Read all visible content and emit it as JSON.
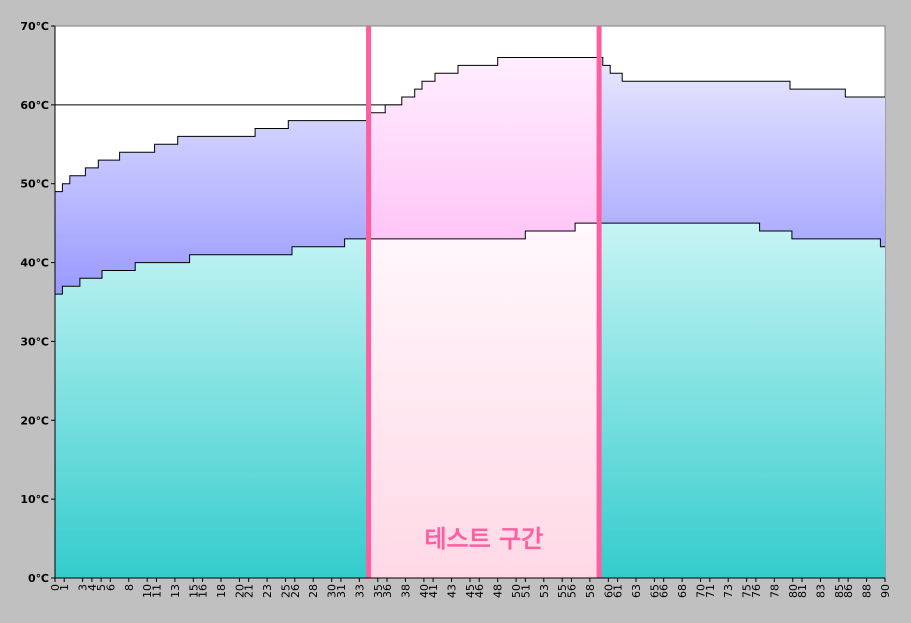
{
  "chart_data": {
    "type": "step-area",
    "series": [
      {
        "color": "#000000",
        "fill_top": "#c8f4f4",
        "fill_bottom": "#33cccc",
        "x": [
          0,
          0.8,
          2.7,
          5.1,
          8.7,
          14.6,
          25.7,
          31.4,
          51.0,
          56.4,
          76.4,
          79.9,
          89.5,
          90
        ],
        "values": [
          36,
          37,
          38,
          39,
          40,
          41,
          42,
          43,
          44,
          45,
          44,
          43,
          42,
          42
        ]
      },
      {
        "color": "#000000",
        "fill_top": "#e8e8ff",
        "fill_bottom": "#9999ff",
        "x": [
          0,
          0.8,
          1.6,
          3.3,
          4.7,
          7.0,
          10.8,
          13.3,
          21.7,
          25.3,
          34.2,
          35.8,
          37.6,
          39.0,
          39.8,
          41.2,
          43.7,
          48.0,
          59.4,
          60.2,
          61.5,
          79.7,
          85.7,
          90
        ],
        "values": [
          49,
          50,
          51,
          52,
          53,
          54,
          55,
          56,
          57,
          58,
          59,
          60,
          61,
          62,
          63,
          64,
          65,
          66,
          65,
          64,
          63,
          62,
          61,
          61
        ]
      }
    ],
    "reference_line": 60,
    "highlight": {
      "range": [
        34,
        59
      ],
      "color": "#ff5fa0",
      "label": "테스트 구간"
    },
    "xlim": [
      0,
      90
    ],
    "xticks": [
      0,
      1,
      3,
      4,
      5,
      6,
      8,
      10,
      11,
      13,
      15,
      16,
      18,
      20,
      21,
      23,
      25,
      26,
      28,
      30,
      31,
      33,
      35,
      36,
      38,
      40,
      41,
      43,
      45,
      46,
      48,
      50,
      51,
      53,
      55,
      56,
      58,
      60,
      61,
      63,
      65,
      66,
      68,
      70,
      71,
      73,
      75,
      76,
      78,
      80,
      81,
      83,
      85,
      86,
      88,
      90
    ],
    "ylim": [
      0,
      70
    ],
    "yticks": [
      {
        "value": 0,
        "label": "0℃"
      },
      {
        "value": 10,
        "label": "10℃"
      },
      {
        "value": 20,
        "label": "20℃"
      },
      {
        "value": 30,
        "label": "30℃"
      },
      {
        "value": 40,
        "label": "40℃"
      },
      {
        "value": 50,
        "label": "50℃"
      },
      {
        "value": 60,
        "label": "60℃"
      },
      {
        "value": 70,
        "label": "70℃"
      }
    ]
  }
}
